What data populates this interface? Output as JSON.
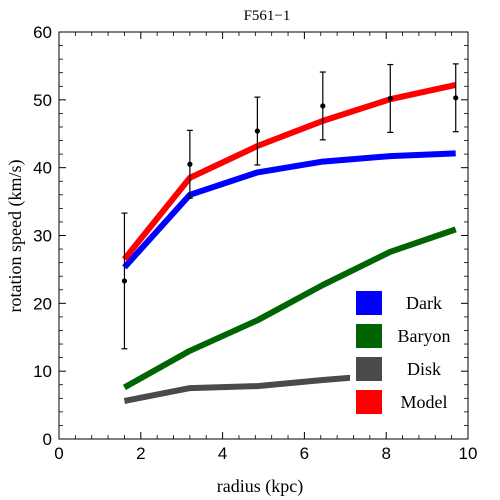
{
  "chart_data": {
    "type": "line",
    "title": "F561−1",
    "xlabel": "radius (kpc)",
    "ylabel": "rotation speed (km/s)",
    "xlim": [
      0,
      10
    ],
    "ylim": [
      0,
      60
    ],
    "x_ticks": [
      "0",
      "2",
      "4",
      "6",
      "8",
      "10"
    ],
    "y_ticks": [
      "0",
      "10",
      "20",
      "30",
      "40",
      "50",
      "60"
    ],
    "grid": false,
    "legend_position": "bottom-right",
    "x": [
      1.6,
      3.2,
      4.85,
      6.45,
      8.1,
      9.7
    ],
    "series": [
      {
        "name": "Dark",
        "color": "#0000ff",
        "values": [
          25.3,
          36.0,
          39.3,
          40.9,
          41.7,
          42.1
        ]
      },
      {
        "name": "Baryon",
        "color": "#006400",
        "values": [
          7.6,
          13.0,
          17.5,
          22.7,
          27.6,
          30.9
        ]
      },
      {
        "name": "Disk",
        "color": "#4a4a4a",
        "values": [
          5.6,
          7.5,
          7.8,
          8.7,
          9.5,
          9.8
        ]
      },
      {
        "name": "Model",
        "color": "#ff0000",
        "values": [
          26.5,
          38.5,
          43.2,
          46.9,
          50.1,
          52.2
        ]
      }
    ],
    "observed": {
      "x": [
        1.6,
        3.2,
        4.85,
        6.45,
        8.1,
        9.7
      ],
      "y": [
        23.3,
        40.5,
        45.4,
        49.1,
        50.2,
        50.3
      ],
      "err": [
        10.0,
        5.0,
        5.0,
        5.0,
        5.0,
        5.0
      ]
    }
  }
}
